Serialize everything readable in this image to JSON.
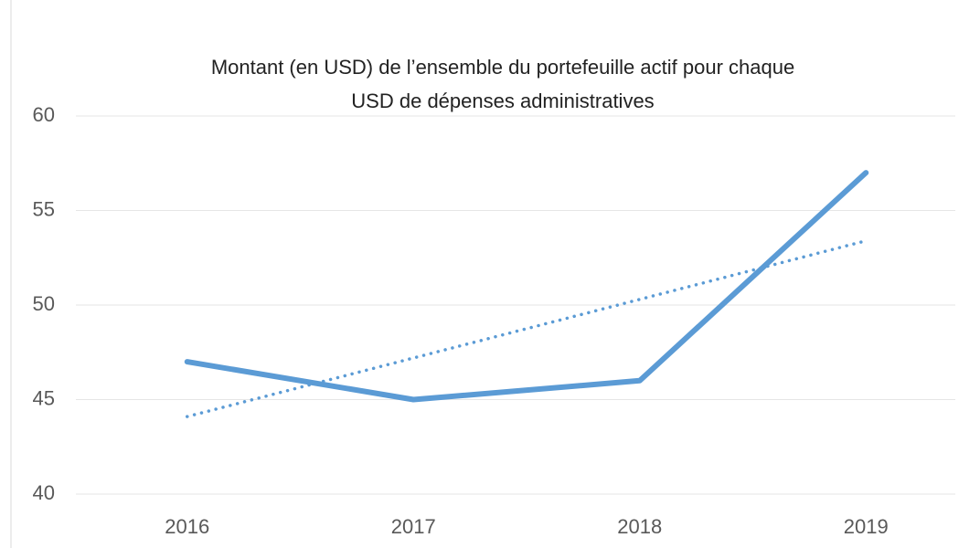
{
  "chart_data": {
    "type": "line",
    "title": [
      "Montant (en USD) de l’ensemble du portefeuille actif pour chaque",
      "USD de dépenses administratives"
    ],
    "categories": [
      "2016",
      "2017",
      "2018",
      "2019"
    ],
    "series": [
      {
        "color": "#5b9bd5",
        "values": [
          47,
          45,
          46,
          57
        ]
      },
      {
        "color": "#5b9bd5",
        "style": "dotted",
        "values": [
          44.1,
          47.2,
          50.3,
          53.4
        ]
      }
    ],
    "ylim": [
      40,
      60
    ],
    "yticks": [
      40,
      45,
      50,
      55,
      60
    ],
    "grid": true
  }
}
